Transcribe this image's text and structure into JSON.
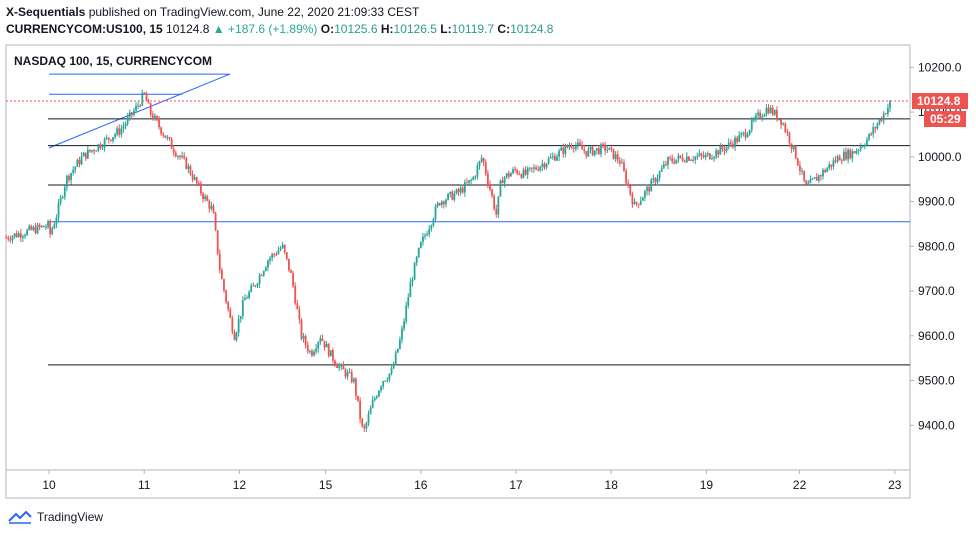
{
  "header": {
    "author": "X-Sequentials",
    "published_text": "published on TradingView.com, June 22, 2020 21:09:33 CEST",
    "symbol": "CURRENCYCOM:US100, 15",
    "last": "10124.8",
    "change": "+187.6 (+1.89%)",
    "o_label": "O:",
    "o_val": "10125.6",
    "h_label": "H:",
    "h_val": "10126.5",
    "l_label": "L:",
    "l_val": "10119.7",
    "c_label": "C:",
    "c_val": "10124.8"
  },
  "footer": {
    "brand": "TradingView"
  },
  "chart_data": {
    "type": "candlestick",
    "title": "NASDAQ 100, 15, CURRENCYCOM",
    "x_ticks": [
      "10",
      "11",
      "12",
      "15",
      "16",
      "17",
      "18",
      "19",
      "22",
      "23"
    ],
    "y_ticks": [
      9400,
      9500,
      9600,
      9700,
      9800,
      9900,
      10000,
      10100,
      10200
    ],
    "ylim": [
      9300,
      10250
    ],
    "last_price_label": "10124.8",
    "countdown_label": "05:29",
    "colors": {
      "up": "#26a69a",
      "down": "#ef5350",
      "price_line": "#ef5350",
      "trend": "#2962ff",
      "levels": "#131722"
    },
    "price_path": [
      [
        0,
        9820
      ],
      [
        0.08,
        9870
      ],
      [
        0.18,
        9950
      ],
      [
        0.35,
        10000
      ],
      [
        0.55,
        10030
      ],
      [
        0.75,
        10060
      ],
      [
        0.92,
        10110
      ],
      [
        1.0,
        10140
      ],
      [
        1.06,
        10100
      ],
      [
        1.15,
        10070
      ],
      [
        1.3,
        10020
      ],
      [
        1.45,
        9980
      ],
      [
        1.6,
        9920
      ],
      [
        1.72,
        9880
      ],
      [
        1.8,
        9740
      ],
      [
        1.9,
        9640
      ],
      [
        1.95,
        9600
      ],
      [
        2.05,
        9680
      ],
      [
        2.15,
        9710
      ],
      [
        2.3,
        9770
      ],
      [
        2.45,
        9800
      ],
      [
        2.55,
        9730
      ],
      [
        2.65,
        9600
      ],
      [
        2.75,
        9560
      ],
      [
        2.85,
        9600
      ],
      [
        2.95,
        9560
      ],
      [
        3.05,
        9530
      ],
      [
        3.2,
        9500
      ],
      [
        3.3,
        9380
      ],
      [
        3.4,
        9450
      ],
      [
        3.5,
        9500
      ],
      [
        3.6,
        9520
      ],
      [
        3.7,
        9600
      ],
      [
        3.8,
        9720
      ],
      [
        3.9,
        9800
      ],
      [
        4.0,
        9850
      ],
      [
        4.1,
        9900
      ],
      [
        4.3,
        9920
      ],
      [
        4.45,
        9950
      ],
      [
        4.55,
        10000
      ],
      [
        4.7,
        9870
      ],
      [
        4.75,
        9950
      ],
      [
        4.9,
        9970
      ],
      [
        5.0,
        9960
      ],
      [
        5.15,
        9980
      ],
      [
        5.3,
        10000
      ],
      [
        5.5,
        10030
      ],
      [
        5.65,
        10010
      ],
      [
        5.85,
        10020
      ],
      [
        6.0,
        9990
      ],
      [
        6.15,
        9890
      ],
      [
        6.3,
        9930
      ],
      [
        6.5,
        9990
      ],
      [
        6.7,
        10000
      ],
      [
        6.9,
        10000
      ],
      [
        7.1,
        10020
      ],
      [
        7.3,
        10050
      ],
      [
        7.45,
        10090
      ],
      [
        7.55,
        10110
      ],
      [
        7.7,
        10080
      ],
      [
        7.85,
        10000
      ],
      [
        7.95,
        9930
      ],
      [
        8.1,
        9960
      ],
      [
        8.3,
        10000
      ],
      [
        8.45,
        10010
      ],
      [
        8.6,
        10040
      ],
      [
        8.75,
        10090
      ],
      [
        8.85,
        10124.8
      ]
    ],
    "annotations": [
      {
        "type": "trend-line",
        "color": "blue",
        "from": [
          0,
          10020
        ],
        "to": [
          1.9,
          10185
        ]
      },
      {
        "type": "trend-line",
        "color": "blue",
        "from": [
          0,
          10140
        ],
        "to": [
          1.4,
          10140
        ]
      },
      {
        "type": "trend-line",
        "color": "blue",
        "from": [
          0,
          10185
        ],
        "to": [
          1.9,
          10185
        ]
      },
      {
        "type": "horizontal-level",
        "color": "blue",
        "value": 9855
      },
      {
        "type": "horizontal-level",
        "color": "black",
        "value": 10085
      },
      {
        "type": "horizontal-level",
        "color": "black",
        "value": 10025
      },
      {
        "type": "horizontal-level",
        "color": "black",
        "value": 9937
      },
      {
        "type": "horizontal-level",
        "color": "black",
        "value": 9535
      }
    ]
  }
}
